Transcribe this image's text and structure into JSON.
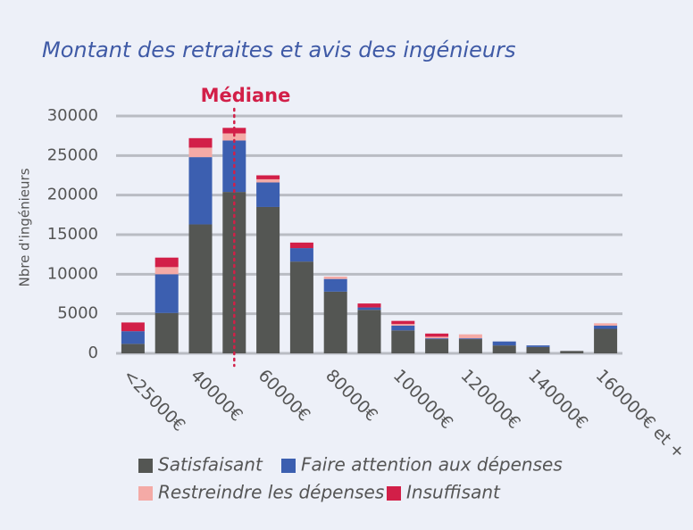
{
  "chart_data": {
    "type": "stacked_bar",
    "title": "Montant des retraites et avis des ingénieurs",
    "annotation": "Médiane",
    "y_label": "Nbre d'ingénieurs",
    "categories": [
      "<25000€",
      null,
      "40000€",
      null,
      "60000€",
      null,
      "80000€",
      null,
      "100000€",
      null,
      "120000€",
      null,
      "140000€",
      null,
      "160000€ et +"
    ],
    "series": [
      {
        "name": "Satisfaisant",
        "color": "#545653",
        "values": [
          1200,
          5100,
          16300,
          20400,
          18500,
          11600,
          7800,
          5500,
          2900,
          1800,
          1800,
          1000,
          800,
          300,
          3100
        ]
      },
      {
        "name": "Faire attention aux dépenses",
        "color": "#3c5fb0",
        "values": [
          1600,
          4900,
          8500,
          6500,
          3100,
          1700,
          1600,
          300,
          600,
          100,
          100,
          500,
          200,
          0,
          400
        ]
      },
      {
        "name": "Restreindre les dépenses",
        "color": "#f4aaa6",
        "values": [
          0,
          900,
          1200,
          900,
          400,
          0,
          300,
          0,
          200,
          200,
          500,
          0,
          0,
          0,
          300
        ]
      },
      {
        "name": "Insuffisant",
        "color": "#d21f48",
        "values": [
          1100,
          1200,
          1200,
          700,
          500,
          700,
          0,
          500,
          400,
          400,
          0,
          0,
          0,
          0,
          0
        ]
      }
    ],
    "ylim": [
      0,
      30000
    ],
    "yticks": [
      0,
      5000,
      10000,
      15000,
      20000,
      25000,
      30000
    ],
    "grid": true
  }
}
